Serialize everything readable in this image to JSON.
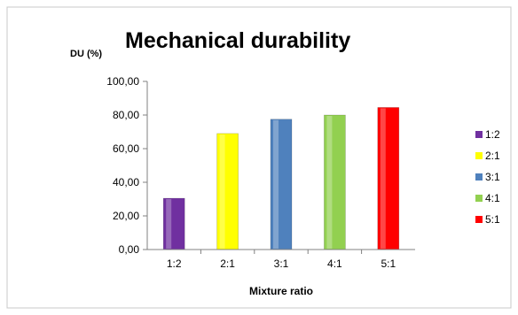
{
  "chart_data": {
    "type": "bar",
    "title": "Mechanical durability",
    "ylabel": "DU (%)",
    "xlabel": "Mixture ratio",
    "categories": [
      "1:2",
      "2:1",
      "3:1",
      "4:1",
      "5:1"
    ],
    "values": [
      30.5,
      69.0,
      77.5,
      80.0,
      84.5
    ],
    "ylim": [
      0,
      100
    ],
    "yticks": [
      "0,00",
      "20,00",
      "40,00",
      "60,00",
      "80,00",
      "100,00"
    ],
    "ytick_values": [
      0,
      20,
      40,
      60,
      80,
      100
    ],
    "colors": [
      "#7030A0",
      "#FFFF00",
      "#4F81BD",
      "#92D050",
      "#FF0000"
    ],
    "grid": false,
    "legend": {
      "placement": "right",
      "entries": [
        "1:2",
        "2:1",
        "3:1",
        "4:1",
        "5:1"
      ]
    }
  }
}
